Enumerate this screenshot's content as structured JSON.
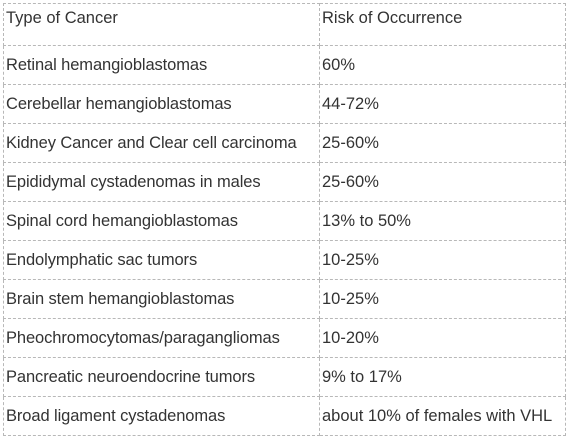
{
  "table": {
    "headers": [
      "Type of Cancer",
      "Risk of Occurrence"
    ],
    "rows": [
      [
        "Retinal hemangioblastomas",
        "60%"
      ],
      [
        "Cerebellar hemangioblastomas",
        "44-72%"
      ],
      [
        "Kidney Cancer and Clear cell carcinoma",
        "25-60%"
      ],
      [
        "Epididymal cystadenomas in males",
        "25-60%"
      ],
      [
        "Spinal cord hemangioblastomas",
        "13% to 50%"
      ],
      [
        "Endolymphatic sac tumors",
        "10-25%"
      ],
      [
        "Brain stem hemangioblastomas",
        "10-25%"
      ],
      [
        "Pheochromocytomas/paragangliomas",
        "10-20%"
      ],
      [
        "Pancreatic neuroendocrine tumors",
        "9% to 17%"
      ],
      [
        "Broad ligament cystadenomas",
        "about 10% of females with VHL"
      ]
    ]
  }
}
